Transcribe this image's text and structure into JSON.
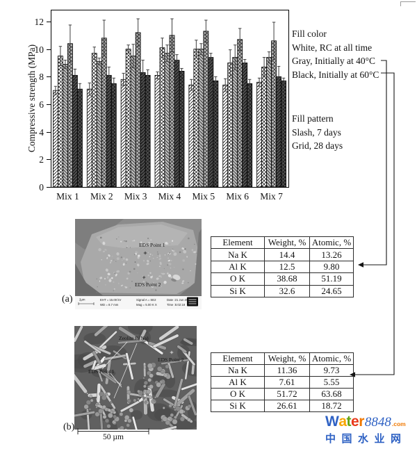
{
  "chart_data": [
    {
      "type": "bar",
      "title": "",
      "xlabel": "",
      "ylabel": "Compressive strength (MPa)",
      "ylim": [
        0,
        12.85
      ],
      "yticks": [
        0,
        2,
        4,
        6,
        8,
        10,
        12
      ],
      "grid": false,
      "legend_position": "right",
      "categories": [
        "Mix 1",
        "Mix 2",
        "Mix 3",
        "Mix 4",
        "Mix 5",
        "Mix 6",
        "Mix 7"
      ],
      "series": [
        {
          "name": "RC at all time, 7 days",
          "fill_color": "white",
          "fill_pattern": "slash",
          "values": [
            7.0,
            7.1,
            7.8,
            8.1,
            7.4,
            7.4,
            7.6
          ],
          "errors": [
            0.3,
            0.45,
            0.45,
            0.25,
            0.4,
            0.45,
            0.3
          ]
        },
        {
          "name": "RC at all time, 28 days",
          "fill_color": "white",
          "fill_pattern": "grid",
          "values": [
            9.5,
            9.7,
            10.0,
            10.1,
            10.0,
            9.0,
            8.7
          ],
          "errors": [
            0.7,
            0.45,
            0.3,
            0.7,
            0.65,
            0.95,
            0.7
          ]
        },
        {
          "name": "Initially at 40°C, 7 days",
          "fill_color": "gray",
          "fill_pattern": "slash",
          "values": [
            8.9,
            9.1,
            9.5,
            9.7,
            10.0,
            9.4,
            9.4
          ],
          "errors": [
            0.3,
            0.25,
            0.85,
            0.6,
            0.4,
            0.9,
            0.4
          ]
        },
        {
          "name": "Initially at 40°C, 28 days",
          "fill_color": "gray",
          "fill_pattern": "grid",
          "values": [
            10.4,
            10.8,
            11.2,
            11.0,
            11.3,
            10.7,
            10.6
          ],
          "errors": [
            1.35,
            1.3,
            1.0,
            1.2,
            0.8,
            0.8,
            1.35
          ]
        },
        {
          "name": "Initially at 60°C, 7 days",
          "fill_color": "black",
          "fill_pattern": "slash",
          "values": [
            8.1,
            8.1,
            8.3,
            9.2,
            9.4,
            9.0,
            8.0
          ],
          "errors": [
            0.45,
            0.6,
            0.9,
            0.4,
            0.3,
            0.25,
            0.75
          ]
        },
        {
          "name": "Initially at 60°C, 28 days",
          "fill_color": "black",
          "fill_pattern": "grid",
          "values": [
            7.1,
            7.5,
            8.1,
            8.4,
            7.7,
            7.5,
            7.7
          ],
          "errors": [
            0.4,
            0.4,
            0.4,
            0.2,
            0.3,
            0.3,
            0.2
          ]
        }
      ],
      "colors": {
        "white": "#ffffff",
        "gray": "#bcbcbc",
        "black": "#4f4f4f"
      },
      "legend": {
        "fill_color_title": "Fill color",
        "fill_color_items": [
          "White, RC at all time",
          "Gray, Initially at 40°C",
          "Black, Initially at 60°C"
        ],
        "fill_pattern_title": "Fill pattern",
        "fill_pattern_items": [
          "Slash, 7 days",
          "Grid, 28 days"
        ]
      }
    },
    {
      "type": "table",
      "name": "EDS analysis of sample (a)",
      "headers": [
        "Element",
        "Weight, %",
        "Atomic, %"
      ],
      "rows": [
        [
          "Na K",
          "14.4",
          "13.26"
        ],
        [
          "Al K",
          "12.5",
          "9.80"
        ],
        [
          "O K",
          "38.68",
          "51.19"
        ],
        [
          "Si K",
          "32.6",
          "24.65"
        ]
      ]
    },
    {
      "type": "table",
      "name": "EDS analysis of sample (b)",
      "headers": [
        "Element",
        "Weight, %",
        "Atomic, %"
      ],
      "rows": [
        [
          "Na K",
          "11.36",
          "9.73"
        ],
        [
          "Al K",
          "7.61",
          "5.55"
        ],
        [
          "O K",
          "51.72",
          "63.68"
        ],
        [
          "Si K",
          "26.61",
          "18.72"
        ]
      ]
    }
  ],
  "figure_a": {
    "label": "(a)",
    "eds_point_1": "EDS Point 1",
    "eds_point_2": "EDS Point 2",
    "infobar": {
      "scale_label": "2µm",
      "fields_top": [
        "EHT = 15.00 kV",
        "Signal A = SE2",
        "Date :21 Jun 2021"
      ],
      "fields_bottom": [
        "WD = 8.7 mm",
        "Mag = 5.00 K X",
        "Time :5:02:18"
      ]
    }
  },
  "figure_b": {
    "label": "(b)",
    "zeolite_label": "Zeolite P (Na)",
    "eds_point_1": "EDS Point 1",
    "eds_point_2": "EDS Point 2",
    "scale_bar": "50 µm"
  },
  "watermark": {
    "letters": [
      [
        "W",
        "#2f62c4"
      ],
      [
        "a",
        "#f7a600"
      ],
      [
        "t",
        "#63a414"
      ],
      [
        "e",
        "#e8391b"
      ],
      [
        "r",
        "#f07800"
      ]
    ],
    "number": "8848",
    "number_color": "#2f62c4",
    "tld": ".com",
    "tld_color": "#f07800",
    "chinese": "中国水业网",
    "chinese_color": "#2f62c4"
  }
}
